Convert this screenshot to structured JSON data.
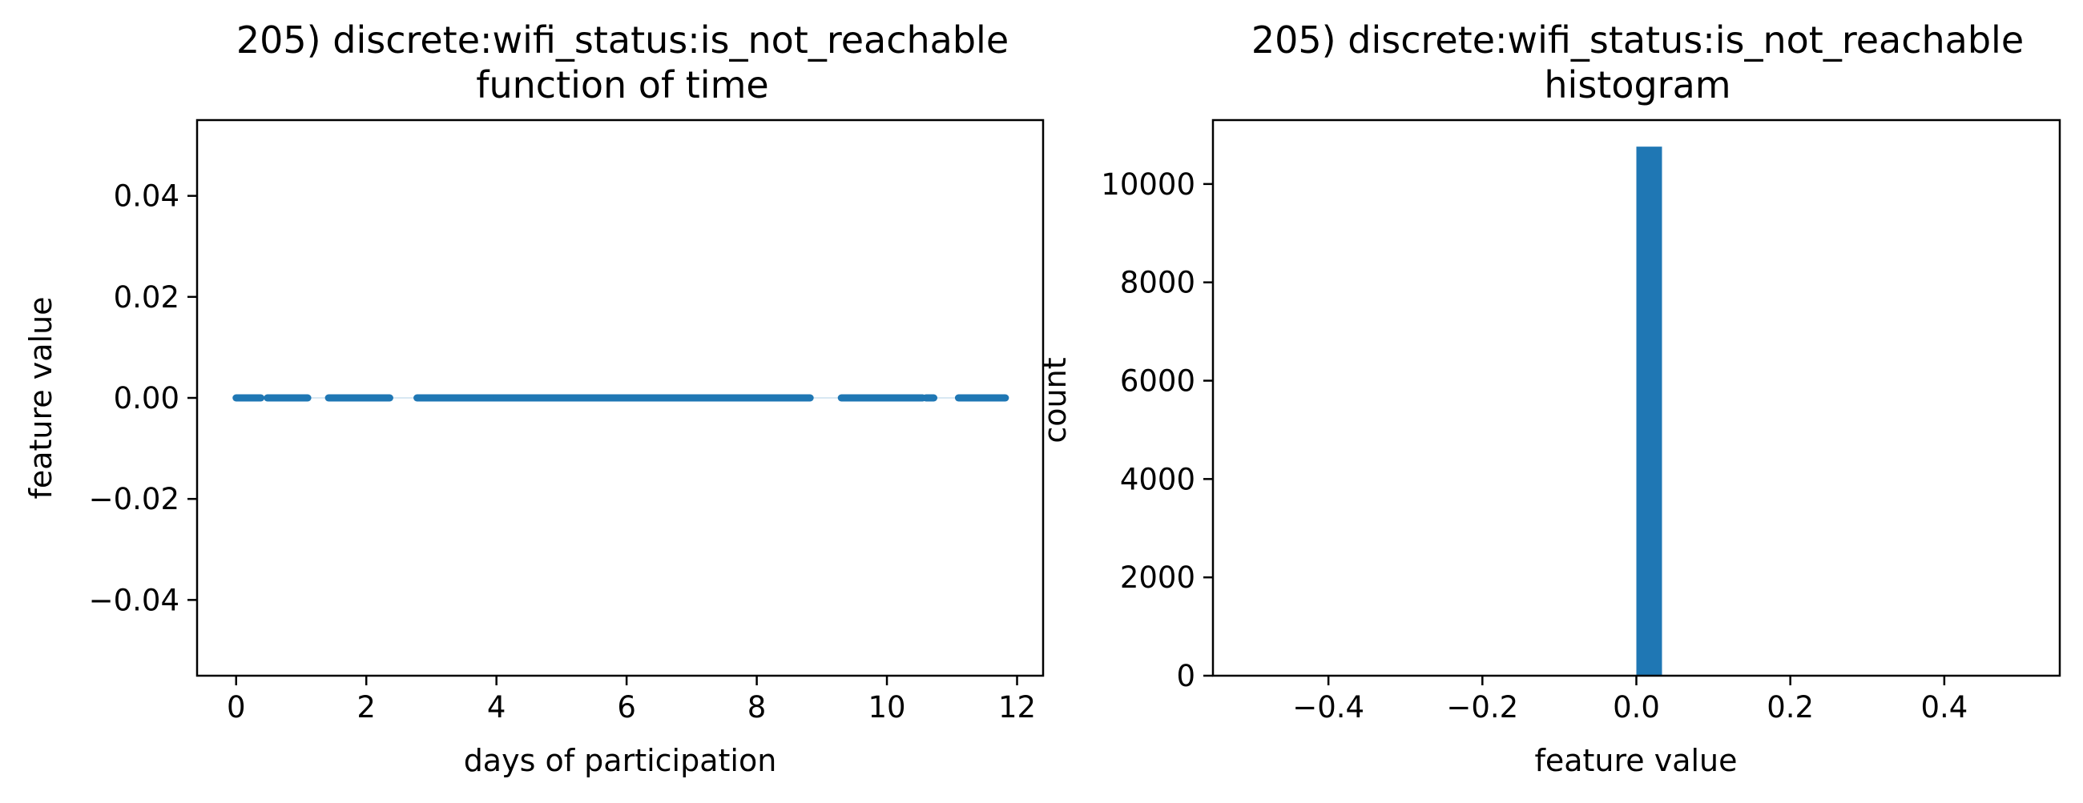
{
  "chart_data": [
    {
      "type": "scatter",
      "title_line1": "205) discrete:wifi_status:is_not_reachable",
      "title_line2": "function of time",
      "xlabel": "days of participation",
      "ylabel": "feature value",
      "xlim": [
        -0.6,
        12.4
      ],
      "ylim": [
        -0.055,
        0.055
      ],
      "xticks": [
        0,
        2,
        4,
        6,
        8,
        10,
        12
      ],
      "xtick_labels": [
        "0",
        "2",
        "4",
        "6",
        "8",
        "10",
        "12"
      ],
      "yticks": [
        0.04,
        0.02,
        0.0,
        -0.02,
        -0.04
      ],
      "ytick_labels": [
        "0.04",
        "0.02",
        "0.00",
        "−0.02",
        "−0.04"
      ],
      "grid": false,
      "series_color": "#1f77b4",
      "y_value": 0.0,
      "x_segments": [
        [
          0.0,
          0.38
        ],
        [
          0.48,
          1.1
        ],
        [
          1.42,
          2.36
        ],
        [
          2.78,
          4.0
        ],
        [
          4.0,
          8.82
        ],
        [
          9.3,
          10.55
        ],
        [
          10.6,
          10.72
        ],
        [
          11.1,
          11.82
        ]
      ]
    },
    {
      "type": "bar",
      "title_line1": "205) discrete:wifi_status:is_not_reachable",
      "title_line2": "histogram",
      "xlabel": "feature value",
      "ylabel": "count",
      "xlim": [
        -0.55,
        0.55
      ],
      "ylim": [
        0,
        11300
      ],
      "xticks": [
        -0.4,
        -0.2,
        0.0,
        0.2,
        0.4
      ],
      "xtick_labels": [
        "−0.4",
        "−0.2",
        "0.0",
        "0.2",
        "0.4"
      ],
      "yticks": [
        0,
        2000,
        4000,
        6000,
        8000,
        10000
      ],
      "ytick_labels": [
        "0",
        "2000",
        "4000",
        "6000",
        "8000",
        "10000"
      ],
      "grid": false,
      "series_color": "#1f77b4",
      "bins": [
        {
          "left": 0.0,
          "right": 0.0333,
          "count": 10760
        }
      ]
    }
  ]
}
